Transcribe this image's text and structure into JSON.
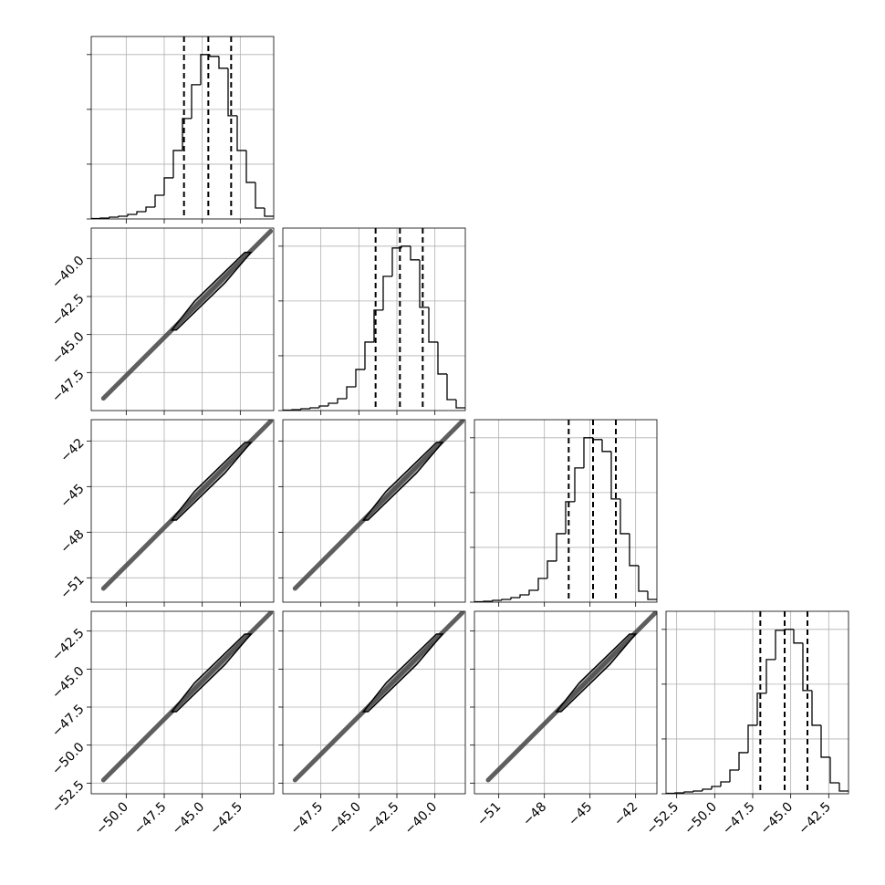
{
  "chart_data": {
    "type": "corner",
    "grid": true,
    "color": "#000000",
    "params": [
      {
        "xlim": [
          -52.3,
          -40.3
        ],
        "ticks": [
          {
            "value": -50,
            "label": "−50.0"
          },
          {
            "value": -47.5,
            "label": "−47.5"
          },
          {
            "value": -45,
            "label": "−45.0"
          },
          {
            "value": -42.5,
            "label": "−42.5"
          }
        ]
      },
      {
        "xlim": [
          -50.0,
          -38.0
        ],
        "ticks": [
          {
            "value": -47.5,
            "label": "−47.5"
          },
          {
            "value": -45,
            "label": "−45.0"
          },
          {
            "value": -42.5,
            "label": "−42.5"
          },
          {
            "value": -40,
            "label": "−40.0"
          }
        ]
      },
      {
        "xlim": [
          -52.6,
          -40.6
        ],
        "ticks": [
          {
            "value": -51,
            "label": "−51"
          },
          {
            "value": -48,
            "label": "−48"
          },
          {
            "value": -45,
            "label": "−45"
          },
          {
            "value": -42,
            "label": "−42"
          }
        ]
      },
      {
        "xlim": [
          -53.2,
          -41.2
        ],
        "ticks": [
          {
            "value": -52.5,
            "label": "−52.5"
          },
          {
            "value": -50,
            "label": "−50.0"
          },
          {
            "value": -47.5,
            "label": "−47.5"
          },
          {
            "value": -45,
            "label": "−45.0"
          },
          {
            "value": -42.5,
            "label": "−42.5"
          }
        ]
      }
    ],
    "hist_ylim": [
      0,
      3330
    ],
    "hist_yticks": [
      0,
      1000,
      2000,
      3000
    ],
    "histograms": [
      {
        "bins": [
          -52.3,
          -51.7,
          -51.1,
          -50.5,
          -49.9,
          -49.3,
          -48.7,
          -48.1,
          -47.5,
          -46.9,
          -46.3,
          -45.7,
          -45.1,
          -44.5,
          -43.9,
          -43.3,
          -42.7,
          -42.1,
          -41.5,
          -40.9,
          -40.3
        ],
        "counts": [
          8,
          17,
          33,
          50,
          83,
          133,
          217,
          433,
          750,
          1250,
          1833,
          2450,
          3000,
          2967,
          2750,
          1883,
          1250,
          667,
          200,
          50
        ],
        "quantiles": [
          -46.2,
          -44.6,
          -43.1
        ]
      },
      {
        "bins": [
          -50,
          -49.4,
          -48.8,
          -48.2,
          -47.6,
          -47,
          -46.4,
          -45.8,
          -45.2,
          -44.6,
          -44,
          -43.4,
          -42.8,
          -42.2,
          -41.6,
          -41,
          -40.4,
          -39.8,
          -39.2,
          -38.6,
          -38
        ],
        "counts": [
          8,
          17,
          33,
          50,
          83,
          133,
          217,
          433,
          750,
          1250,
          1833,
          2450,
          2967,
          3000,
          2750,
          1883,
          1250,
          667,
          200,
          50
        ],
        "quantiles": [
          -43.9,
          -42.3,
          -40.8
        ]
      },
      {
        "bins": [
          -52.6,
          -52,
          -51.4,
          -50.8,
          -50.2,
          -49.6,
          -49,
          -48.4,
          -47.8,
          -47.2,
          -46.6,
          -46,
          -45.4,
          -44.8,
          -44.2,
          -43.6,
          -43,
          -42.4,
          -41.8,
          -41.2,
          -40.6
        ],
        "counts": [
          8,
          17,
          33,
          50,
          83,
          133,
          217,
          433,
          750,
          1250,
          1833,
          2450,
          3000,
          2967,
          2750,
          1883,
          1250,
          667,
          200,
          50
        ],
        "quantiles": [
          -46.4,
          -44.8,
          -43.3
        ]
      },
      {
        "bins": [
          -53.2,
          -52.6,
          -52,
          -51.4,
          -50.8,
          -50.2,
          -49.6,
          -49,
          -48.4,
          -47.8,
          -47.2,
          -46.6,
          -46,
          -45.4,
          -44.8,
          -44.2,
          -43.6,
          -43,
          -42.4,
          -41.8,
          -41.2
        ],
        "counts": [
          8,
          17,
          33,
          50,
          83,
          133,
          217,
          433,
          750,
          1250,
          1833,
          2450,
          2983,
          3000,
          2750,
          1883,
          1250,
          667,
          200,
          50
        ],
        "quantiles": [
          -47.0,
          -45.4,
          -43.9
        ]
      }
    ],
    "pairs": [
      [
        {
          "band": {
            "x": [
              -51.5,
              -40.5
            ],
            "y": [
              -49.2,
              -38.2
            ]
          },
          "contour": {
            "x": [
              -47.0,
              -45.5,
              -42.2,
              -41.8,
              -43.5,
              -46.7
            ],
            "y": [
              -44.7,
              -42.8,
              -39.6,
              -39.6,
              -41.6,
              -44.7
            ]
          }
        }
      ],
      [
        {
          "band": {
            "x": [
              -51.5,
              -40.5
            ],
            "y": [
              -51.7,
              -40.7
            ]
          },
          "contour": {
            "x": [
              -47.0,
              -45.5,
              -42.2,
              -41.8,
              -43.5,
              -46.7
            ],
            "y": [
              -47.2,
              -45.3,
              -42.1,
              -42.1,
              -44.1,
              -47.2
            ]
          }
        },
        {
          "band": {
            "x": [
              -49.2,
              -38.2
            ],
            "y": [
              -51.7,
              -40.7
            ]
          },
          "contour": {
            "x": [
              -44.7,
              -43.2,
              -39.9,
              -39.5,
              -41.2,
              -44.4
            ],
            "y": [
              -47.2,
              -45.3,
              -42.1,
              -42.1,
              -44.1,
              -47.2
            ]
          }
        }
      ],
      [
        {
          "band": {
            "x": [
              -51.5,
              -40.5
            ],
            "y": [
              -52.3,
              -41.3
            ]
          },
          "contour": {
            "x": [
              -47.0,
              -45.5,
              -42.2,
              -41.8,
              -43.5,
              -46.7
            ],
            "y": [
              -47.8,
              -45.9,
              -42.7,
              -42.7,
              -44.7,
              -47.8
            ]
          }
        },
        {
          "band": {
            "x": [
              -49.2,
              -38.2
            ],
            "y": [
              -52.3,
              -41.3
            ]
          },
          "contour": {
            "x": [
              -44.7,
              -43.2,
              -39.9,
              -39.5,
              -41.2,
              -44.4
            ],
            "y": [
              -47.8,
              -45.9,
              -42.7,
              -42.7,
              -44.7,
              -47.8
            ]
          }
        },
        {
          "band": {
            "x": [
              -51.7,
              -40.7
            ],
            "y": [
              -52.3,
              -41.3
            ]
          },
          "contour": {
            "x": [
              -47.2,
              -45.7,
              -42.4,
              -42.0,
              -43.7,
              -46.9
            ],
            "y": [
              -47.8,
              -45.9,
              -42.7,
              -42.7,
              -44.7,
              -47.8
            ]
          }
        }
      ]
    ]
  }
}
